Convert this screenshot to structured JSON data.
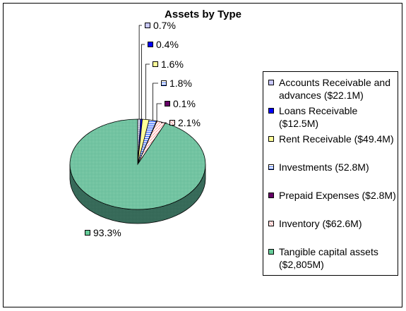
{
  "chart_data": {
    "type": "pie",
    "title": "Assets by Type",
    "slices": [
      {
        "legend": "Accounts Receivable and advances ($22.1M)",
        "label": "0.7%",
        "value": 0.7,
        "color": "#c8c8ff",
        "pattern": "grid"
      },
      {
        "legend": "Loans Receivable ($12.5M)",
        "label": "0.4%",
        "value": 0.4,
        "color": "#0000ff",
        "pattern": "solid"
      },
      {
        "legend": "Rent Receivable ($49.4M)",
        "label": "1.6%",
        "value": 1.6,
        "color": "#ffff99",
        "pattern": "solid"
      },
      {
        "legend": "Investments (52.8M)",
        "label": "1.8%",
        "value": 1.8,
        "color": "#3366ff",
        "pattern": "lines"
      },
      {
        "legend": "Prepaid Expenses ($2.8M)",
        "label": "0.1%",
        "value": 0.1,
        "color": "#660066",
        "pattern": "solid"
      },
      {
        "legend": "Inventory ($62.6M)",
        "label": "2.1%",
        "value": 2.1,
        "color": "#ffcccc",
        "pattern": "diag"
      },
      {
        "legend": "Tangible capital assets ($2,805M)",
        "label": "93.3%",
        "value": 93.3,
        "color": "#66cc99",
        "pattern": "dots"
      }
    ]
  }
}
